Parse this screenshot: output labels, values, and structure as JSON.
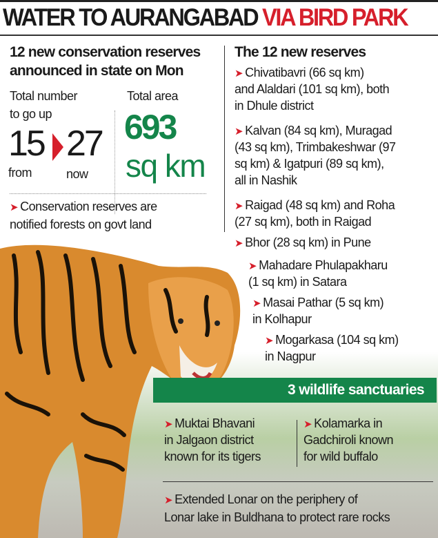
{
  "headline": {
    "part1": "WATER TO AURANGABAD",
    "part2": "VIA BIRD PARK"
  },
  "left": {
    "heading_line1": "12 new conservation reserves",
    "heading_line2": "announced in state on Mon",
    "total_number_label1": "Total number",
    "total_number_label2": "to go up",
    "from_value": "15",
    "from_label": "from",
    "now_value": "27",
    "now_label": "now",
    "total_area_label": "Total area",
    "total_area_value": "693",
    "total_area_unit": "sq km",
    "note_line1": "Conservation reserves are",
    "note_line2": "notified forests on govt land"
  },
  "right": {
    "heading": "The 12 new reserves",
    "items": [
      {
        "lines": [
          "Chivatibavri (66 sq km)",
          "and Alaldari (101 sq km), both",
          "in Dhule district"
        ]
      },
      {
        "lines": [
          "Kalvan (84 sq km), Muragad",
          "(43 sq km), Trimbakeshwar (97",
          "sq km) & Igatpuri (89 sq km),",
          "all in Nashik"
        ]
      },
      {
        "lines": [
          "Raigad (48 sq km) and Roha",
          "(27 sq km), both in Raigad"
        ]
      },
      {
        "lines": [
          "Bhor (28 sq km) in Pune"
        ]
      },
      {
        "lines": [
          "Mahadare Phulapakharu",
          "(1 sq km) in Satara"
        ]
      },
      {
        "lines": [
          "Masai Pathar (5 sq km)",
          "in Kolhapur"
        ]
      },
      {
        "lines": [
          "Mogarkasa (104 sq km)",
          "in Nagpur"
        ]
      }
    ]
  },
  "sanctuaries": {
    "heading": "3 wildlife sanctuaries",
    "items": [
      {
        "lines": [
          "Muktai Bhavani",
          "in Jalgaon district",
          "known for its tigers"
        ]
      },
      {
        "lines": [
          "Kolamarka in",
          "Gadchiroli known",
          "for wild buffalo"
        ]
      },
      {
        "lines": [
          "Extended Lonar on the periphery of",
          "Lonar lake in Buldhana to protect rare rocks"
        ]
      }
    ]
  },
  "colors": {
    "accent_red": "#d61f2b",
    "green": "#14854a"
  },
  "icons": {
    "bullet": "red-arrow-icon",
    "up_arrow": "red-triangle-icon"
  }
}
